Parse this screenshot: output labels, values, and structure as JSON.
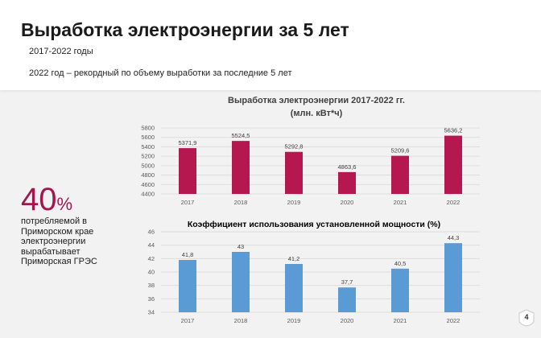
{
  "header": {
    "title": "Выработка электроэнергии за 5 лет",
    "subtitle": "2017-2022 годы",
    "note": "2022 год – рекордный по объему выработки за последние  5 лет"
  },
  "kpi": {
    "value": "40",
    "unit": "%",
    "text": "потребляемой в Приморском крае электроэнергии вырабатывает Приморская ГРЭС"
  },
  "page_number": "4",
  "chart_data": [
    {
      "type": "bar",
      "title": "Выработка электроэнергии 2017-2022 гг.",
      "subtitle": "(млн. кВт*ч)",
      "categories": [
        "2017",
        "2018",
        "2019",
        "2020",
        "2021",
        "2022"
      ],
      "values": [
        5371.9,
        5524.5,
        5292.8,
        4863.6,
        5209.6,
        5636.2
      ],
      "value_labels": [
        "5371,9",
        "5524,5",
        "5292,8",
        "4863,6",
        "5209,6",
        "5636,2"
      ],
      "yticks": [
        "4400",
        "4600",
        "4800",
        "5000",
        "5200",
        "5400",
        "5600",
        "5800"
      ],
      "ylim": [
        4400,
        5800
      ],
      "color": "#b5174f",
      "grid": true
    },
    {
      "type": "bar",
      "title": "Коэффициент использования установленной мощности (%)",
      "categories": [
        "2017",
        "2018",
        "2019",
        "2020",
        "2021",
        "2022"
      ],
      "values": [
        41.8,
        43,
        41.2,
        37.7,
        40.5,
        44.3
      ],
      "value_labels": [
        "41,8",
        "43",
        "41,2",
        "37,7",
        "40,5",
        "44,3"
      ],
      "yticks": [
        "34",
        "36",
        "38",
        "40",
        "42",
        "44",
        "46"
      ],
      "ylim": [
        34,
        46
      ],
      "color": "#5b9bd5",
      "grid": true
    }
  ]
}
